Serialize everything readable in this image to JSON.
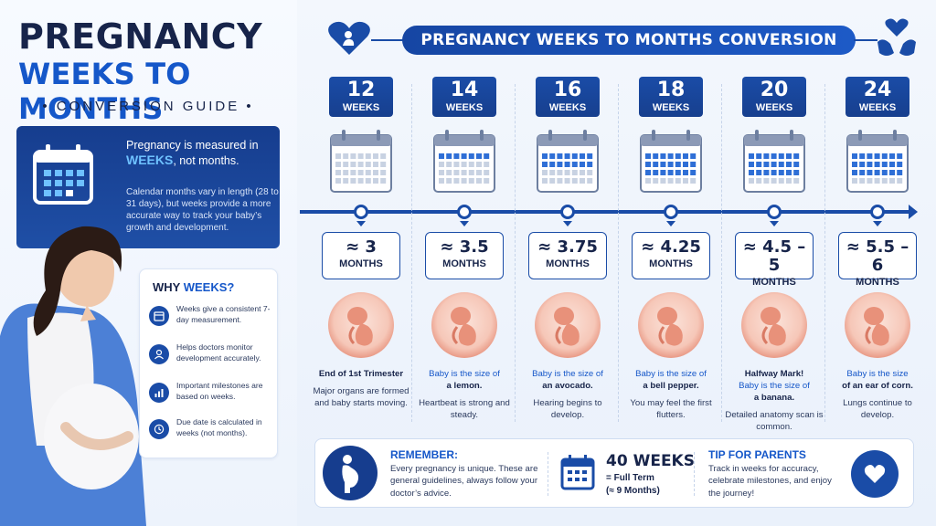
{
  "left": {
    "title_line1": "PREGNANCY",
    "title_line2": "WEEKS TO MONTHS",
    "subtitle": "• CONVERSION GUIDE •",
    "info": {
      "lead_pre": "Pregnancy is measured in",
      "lead_weeks": "WEEKS",
      "lead_post": ", not months.",
      "description": "Calendar months vary in length (28 to 31 days), but weeks provide a more accurate way to track your baby’s growth and development."
    },
    "why": {
      "title_pre": "WHY ",
      "title_blue": "WEEKS?",
      "items": [
        {
          "icon": "calendar-icon",
          "text": "Weeks give a consistent 7-day measurement."
        },
        {
          "icon": "doctor-icon",
          "text": "Helps doctors monitor development accurately."
        },
        {
          "icon": "chart-icon",
          "text": "Important milestones are based on weeks."
        },
        {
          "icon": "clock-icon",
          "text": "Due date is calculated in weeks (not months)."
        }
      ]
    }
  },
  "header": {
    "title": "PREGNANCY WEEKS TO MONTHS CONVERSION"
  },
  "columns": [
    {
      "week": "12",
      "week_label": "WEEKS",
      "filled_days": 0,
      "months": "≈ 3",
      "months_label": "MONTHS",
      "caption_head": "End of 1st Trimester",
      "caption_head_blue": false,
      "caption_line1": "",
      "caption_line2": "Major organs are formed and baby starts moving."
    },
    {
      "week": "14",
      "week_label": "WEEKS",
      "filled_days": 7,
      "months": "≈ 3.5",
      "months_label": "MONTHS",
      "caption_head": "",
      "caption_head_blue": false,
      "caption_line1": "Baby is the size of",
      "caption_bold": "a lemon.",
      "caption_line2": "Heartbeat is strong and steady."
    },
    {
      "week": "16",
      "week_label": "WEEKS",
      "filled_days": 14,
      "months": "≈ 3.75",
      "months_label": "MONTHS",
      "caption_head": "",
      "caption_head_blue": false,
      "caption_line1": "Baby is the size of",
      "caption_bold": "an avocado.",
      "caption_line2": "Hearing begins to develop."
    },
    {
      "week": "18",
      "week_label": "WEEKS",
      "filled_days": 21,
      "months": "≈ 4.25",
      "months_label": "MONTHS",
      "caption_head": "",
      "caption_head_blue": false,
      "caption_line1": "Baby is the size of",
      "caption_bold": "a bell pepper.",
      "caption_line2": "You may feel the first flutters."
    },
    {
      "week": "20",
      "week_label": "WEEKS",
      "filled_days": 21,
      "months": "≈ 4.5 – 5",
      "months_label": "MONTHS",
      "caption_head": "Halfway Mark!",
      "caption_head_blue": false,
      "caption_line1": "Baby is the size of",
      "caption_bold": "a banana.",
      "caption_line2": "Detailed anatomy scan is common."
    },
    {
      "week": "24",
      "week_label": "WEEKS",
      "filled_days": 21,
      "months": "≈ 5.5 – 6",
      "months_label": "MONTHS",
      "caption_head": "",
      "caption_head_blue": false,
      "caption_line1": "Baby is the size",
      "caption_bold": "of an ear of corn.",
      "caption_line2": "Lungs continue to develop."
    }
  ],
  "bottom": {
    "remember_title": "REMEMBER:",
    "remember_text": "Every pregnancy is unique. These are general guidelines, always follow your doctor’s advice.",
    "full_term_weeks": "40 WEEKS",
    "full_term_label": "= Full Term",
    "full_term_months": "(≈ 9 Months)",
    "tip_title": "TIP FOR PARENTS",
    "tip_text": "Track in weeks for accuracy, celebrate milestones, and enjoy the journey!"
  },
  "colors": {
    "primary": "#1a4ca7",
    "dark": "#17244a",
    "accent": "#1557c9",
    "light_accent": "#6ec1ff"
  }
}
